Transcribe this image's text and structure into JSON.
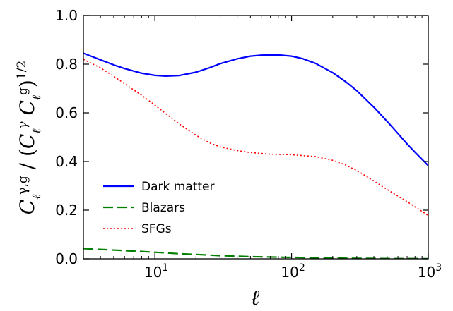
{
  "chart_data": {
    "type": "line",
    "title": "",
    "xlabel": "ℓ",
    "ylabel": "C_ℓ^{γ,g} / (C_ℓ^γ C_ℓ^g)^{1/2}",
    "xscale": "log",
    "xlim": [
      3,
      1000
    ],
    "ylim": [
      0.0,
      1.0
    ],
    "x_ticks": [
      {
        "value": 10,
        "base": "10",
        "exp": "1"
      },
      {
        "value": 100,
        "base": "10",
        "exp": "2"
      },
      {
        "value": 1000,
        "base": "10",
        "exp": "3"
      }
    ],
    "y_ticks": [
      {
        "value": 0.0,
        "label": "0.0"
      },
      {
        "value": 0.2,
        "label": "0.2"
      },
      {
        "value": 0.4,
        "label": "0.4"
      },
      {
        "value": 0.6,
        "label": "0.6"
      },
      {
        "value": 0.8,
        "label": "0.8"
      },
      {
        "value": 1.0,
        "label": "1.0"
      }
    ],
    "grid": false,
    "legend_position": "lower-left",
    "series": [
      {
        "name": "Dark matter",
        "color": "#0000ff",
        "style": "solid",
        "x": [
          3,
          4,
          5,
          6,
          8,
          10,
          12,
          15,
          20,
          25,
          30,
          40,
          50,
          60,
          70,
          80,
          100,
          120,
          150,
          200,
          250,
          300,
          400,
          500,
          600,
          700,
          800,
          1000
        ],
        "y": [
          0.845,
          0.818,
          0.797,
          0.782,
          0.763,
          0.754,
          0.751,
          0.753,
          0.767,
          0.785,
          0.802,
          0.822,
          0.833,
          0.837,
          0.838,
          0.838,
          0.833,
          0.823,
          0.803,
          0.765,
          0.727,
          0.691,
          0.623,
          0.565,
          0.515,
          0.472,
          0.438,
          0.383
        ]
      },
      {
        "name": "Blazars",
        "color": "#007f00",
        "style": "dashed",
        "x": [
          3,
          5,
          8,
          10,
          15,
          20,
          30,
          50,
          100,
          200,
          300,
          500,
          1000
        ],
        "y": [
          0.042,
          0.036,
          0.03,
          0.027,
          0.021,
          0.018,
          0.013,
          0.009,
          0.006,
          0.003,
          0.002,
          0.001,
          0.0005
        ]
      },
      {
        "name": "SFGs",
        "color": "#ff0000",
        "style": "dotted",
        "x": [
          3,
          4,
          5,
          6,
          8,
          10,
          12,
          15,
          20,
          25,
          30,
          40,
          50,
          70,
          100,
          150,
          200,
          250,
          300,
          400,
          500,
          700,
          1000
        ],
        "y": [
          0.82,
          0.785,
          0.75,
          0.72,
          0.672,
          0.632,
          0.597,
          0.555,
          0.508,
          0.477,
          0.46,
          0.445,
          0.437,
          0.43,
          0.428,
          0.42,
          0.405,
          0.385,
          0.363,
          0.32,
          0.285,
          0.235,
          0.178
        ]
      }
    ]
  }
}
